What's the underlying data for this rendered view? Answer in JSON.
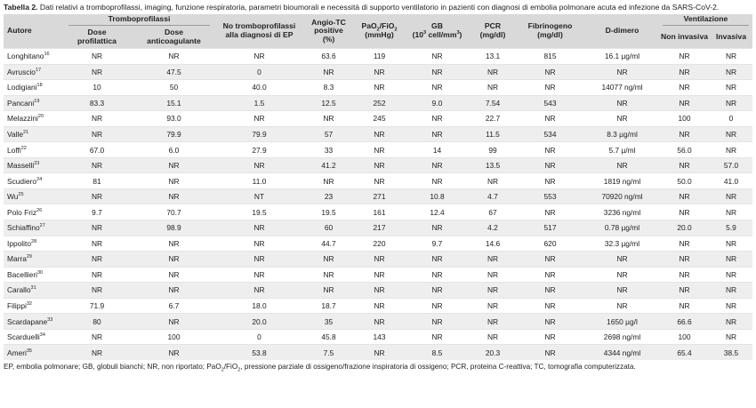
{
  "caption": {
    "label": "Tabella 2.",
    "text": " Dati relativi a tromboprofilassi, imaging, funzione respiratoria, parametri bioumorali e necessità di supporto ventilatorio in pazienti con diagnosi di embolia polmonare acuta ed infezione da SARS-CoV-2."
  },
  "headers": {
    "autore": "Autore",
    "tromboprofilassi": "Tromboprofilassi",
    "dose_profilattica_1": "Dose",
    "dose_profilattica_2": "profilattica",
    "dose_anticoagulante_1": "Dose",
    "dose_anticoagulante_2": "anticoagulante",
    "no_trombo_1": "No tromboprofilassi",
    "no_trombo_2": "alla diagnosi di EP",
    "angio_1": "Angio-TC",
    "angio_2": "positive",
    "angio_3": "(%)",
    "pao2_a": "PaO",
    "pao2_sub1": "2",
    "pao2_b": "/FiO",
    "pao2_sub2": "2",
    "pao2_unit": "(mmHg)",
    "gb_1": "GB",
    "gb_2a": "(10",
    "gb_sup": "3",
    "gb_2b": " cell/mm",
    "gb_sup2": "3",
    "gb_2c": ")",
    "pcr_1": "PCR",
    "pcr_2": "(mg/dl)",
    "fib_1": "Fibrinogeno",
    "fib_2": "(mg/dl)",
    "ddimero": "D-dimero",
    "ventilazione": "Ventilazione",
    "non_invasiva": "Non invasiva",
    "invasiva": "Invasiva"
  },
  "rows": [
    {
      "autore": "Longhitano",
      "ref": "16",
      "c": [
        "NR",
        "NR",
        "NR",
        "63.6",
        "119",
        "NR",
        "13.1",
        "815",
        "16.1 µg/ml",
        "NR",
        "NR"
      ]
    },
    {
      "autore": "Avruscio",
      "ref": "17",
      "c": [
        "NR",
        "47.5",
        "0",
        "NR",
        "NR",
        "NR",
        "NR",
        "NR",
        "NR",
        "NR",
        "NR"
      ]
    },
    {
      "autore": "Lodigiani",
      "ref": "18",
      "c": [
        "10",
        "50",
        "40.0",
        "8.3",
        "NR",
        "NR",
        "NR",
        "NR",
        "14077 ng/ml",
        "NR",
        "NR"
      ]
    },
    {
      "autore": "Pancani",
      "ref": "19",
      "c": [
        "83.3",
        "15.1",
        "1.5",
        "12.5",
        "252",
        "9.0",
        "7.54",
        "543",
        "NR",
        "NR",
        "NR"
      ]
    },
    {
      "autore": "Melazzini",
      "ref": "20",
      "c": [
        "NR",
        "93.0",
        "NR",
        "NR",
        "245",
        "NR",
        "22.7",
        "NR",
        "NR",
        "100",
        "0"
      ]
    },
    {
      "autore": "Valle",
      "ref": "21",
      "c": [
        "NR",
        "79.9",
        "79.9",
        "57",
        "NR",
        "NR",
        "11.5",
        "534",
        "8.3 µg/ml",
        "NR",
        "NR"
      ]
    },
    {
      "autore": "Loffi",
      "ref": "22",
      "c": [
        "67.0",
        "6.0",
        "27.9",
        "33",
        "NR",
        "14",
        "99",
        "NR",
        "5.7 µ/ml",
        "56.0",
        "NR"
      ]
    },
    {
      "autore": "Masselli",
      "ref": "23",
      "c": [
        "NR",
        "NR",
        "NR",
        "41.2",
        "NR",
        "NR",
        "13.5",
        "NR",
        "NR",
        "NR",
        "57.0"
      ]
    },
    {
      "autore": "Scudiero",
      "ref": "24",
      "c": [
        "81",
        "NR",
        "11.0",
        "NR",
        "NR",
        "NR",
        "NR",
        "NR",
        "1819 ng/ml",
        "50.0",
        "41.0"
      ]
    },
    {
      "autore": "Wu",
      "ref": "25",
      "c": [
        "NR",
        "NR",
        "NT",
        "23",
        "271",
        "10.8",
        "4.7",
        "553",
        "70920 ng/ml",
        "NR",
        "NR"
      ]
    },
    {
      "autore": "Polo Friz",
      "ref": "26",
      "c": [
        "9.7",
        "70.7",
        "19.5",
        "19.5",
        "161",
        "12.4",
        "67",
        "NR",
        "3236 ng/ml",
        "NR",
        "NR"
      ]
    },
    {
      "autore": "Schiaffino",
      "ref": "27",
      "c": [
        "NR",
        "98.9",
        "NR",
        "60",
        "217",
        "NR",
        "4.2",
        "517",
        "0.78 µg/ml",
        "20.0",
        "5.9"
      ]
    },
    {
      "autore": "Ippolito",
      "ref": "28",
      "c": [
        "NR",
        "NR",
        "NR",
        "44.7",
        "220",
        "9.7",
        "14.6",
        "620",
        "32.3 µg/ml",
        "NR",
        "NR"
      ]
    },
    {
      "autore": "Marra",
      "ref": "29",
      "c": [
        "NR",
        "NR",
        "NR",
        "NR",
        "NR",
        "NR",
        "NR",
        "NR",
        "NR",
        "NR",
        "NR"
      ]
    },
    {
      "autore": "Bacellieri",
      "ref": "30",
      "c": [
        "NR",
        "NR",
        "NR",
        "NR",
        "NR",
        "NR",
        "NR",
        "NR",
        "NR",
        "NR",
        "NR"
      ]
    },
    {
      "autore": "Carallo",
      "ref": "31",
      "c": [
        "NR",
        "NR",
        "NR",
        "NR",
        "NR",
        "NR",
        "NR",
        "NR",
        "NR",
        "NR",
        "NR"
      ]
    },
    {
      "autore": "Filippi",
      "ref": "32",
      "c": [
        "71.9",
        "6.7",
        "18.0",
        "18.7",
        "NR",
        "NR",
        "NR",
        "NR",
        "NR",
        "NR",
        "NR"
      ]
    },
    {
      "autore": "Scardapane",
      "ref": "33",
      "c": [
        "80",
        "NR",
        "20.0",
        "35",
        "NR",
        "NR",
        "NR",
        "NR",
        "1650 µg/l",
        "66.6",
        "NR"
      ]
    },
    {
      "autore": "Scarduelli",
      "ref": "34",
      "c": [
        "NR",
        "100",
        "0",
        "45.8",
        "143",
        "NR",
        "NR",
        "NR",
        "2698 ng/ml",
        "100",
        "NR"
      ]
    },
    {
      "autore": "Ameri",
      "ref": "35",
      "c": [
        "NR",
        "NR",
        "53.8",
        "7.5",
        "NR",
        "8.5",
        "20.3",
        "NR",
        "4344 ng/ml",
        "65.4",
        "38.5"
      ]
    }
  ],
  "footnote": {
    "a": "EP, embolia polmonare; GB, globuli bianchi; NR, non riportato; PaO",
    "s1": "2",
    "b": "/FiO",
    "s2": "2",
    "c": ", pressione parziale di ossigeno/frazione inspiratoria di ossigeno; PCR, proteina C-reattiva; TC, tomografia computerizzata."
  }
}
